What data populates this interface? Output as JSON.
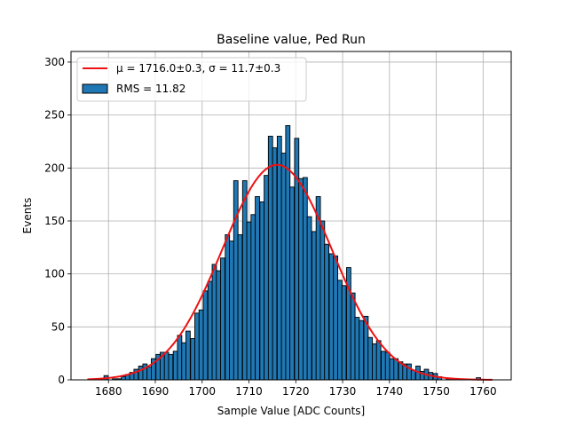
{
  "chart_data": {
    "type": "bar",
    "title": "Baseline value, Ped Run",
    "xlabel": "Sample Value [ADC Counts]",
    "ylabel": "Events",
    "xlim": [
      1672,
      1766
    ],
    "ylim": [
      0,
      310
    ],
    "xticks": [
      1680,
      1690,
      1700,
      1710,
      1720,
      1730,
      1740,
      1750,
      1760
    ],
    "yticks": [
      0,
      50,
      100,
      150,
      200,
      250,
      300
    ],
    "grid": true,
    "legend_position": "top-left",
    "bar_color": "#1f77b4",
    "fit_color": "#ee1111",
    "legend": [
      {
        "kind": "line",
        "label": "μ = 1716.0±0.3, σ = 11.7±0.3"
      },
      {
        "kind": "bar",
        "label": "RMS = 11.82"
      }
    ],
    "histogram": {
      "bin_width": 0.92,
      "bins": [
        [
          1679.5,
          4
        ],
        [
          1681.3,
          1
        ],
        [
          1682.2,
          1
        ],
        [
          1683.2,
          3
        ],
        [
          1684.1,
          5
        ],
        [
          1685.0,
          7
        ],
        [
          1685.9,
          10
        ],
        [
          1686.9,
          13
        ],
        [
          1687.8,
          15
        ],
        [
          1688.7,
          12
        ],
        [
          1689.6,
          20
        ],
        [
          1690.6,
          24
        ],
        [
          1691.5,
          26
        ],
        [
          1692.4,
          26
        ],
        [
          1693.3,
          24
        ],
        [
          1694.3,
          27
        ],
        [
          1695.2,
          42
        ],
        [
          1696.1,
          35
        ],
        [
          1697.0,
          46
        ],
        [
          1698.0,
          39
        ],
        [
          1698.9,
          63
        ],
        [
          1699.8,
          66
        ],
        [
          1700.7,
          84
        ],
        [
          1701.7,
          93
        ],
        [
          1702.6,
          109
        ],
        [
          1703.5,
          103
        ],
        [
          1704.4,
          115
        ],
        [
          1705.4,
          137
        ],
        [
          1706.3,
          131
        ],
        [
          1707.2,
          188
        ],
        [
          1708.1,
          137
        ],
        [
          1709.1,
          188
        ],
        [
          1710.0,
          149
        ],
        [
          1710.9,
          156
        ],
        [
          1711.8,
          173
        ],
        [
          1712.8,
          168
        ],
        [
          1713.7,
          193
        ],
        [
          1714.6,
          230
        ],
        [
          1715.5,
          219
        ],
        [
          1716.5,
          230
        ],
        [
          1717.4,
          214
        ],
        [
          1718.3,
          240
        ],
        [
          1719.2,
          182
        ],
        [
          1720.2,
          228
        ],
        [
          1721.1,
          190
        ],
        [
          1722.0,
          191
        ],
        [
          1722.9,
          154
        ],
        [
          1723.9,
          140
        ],
        [
          1724.8,
          173
        ],
        [
          1725.7,
          150
        ],
        [
          1726.6,
          128
        ],
        [
          1727.6,
          119
        ],
        [
          1728.5,
          117
        ],
        [
          1729.4,
          94
        ],
        [
          1730.3,
          89
        ],
        [
          1731.3,
          106
        ],
        [
          1732.2,
          82
        ],
        [
          1733.1,
          59
        ],
        [
          1734.0,
          56
        ],
        [
          1735.0,
          60
        ],
        [
          1735.9,
          40
        ],
        [
          1736.8,
          34
        ],
        [
          1737.7,
          37
        ],
        [
          1738.7,
          27
        ],
        [
          1739.6,
          26
        ],
        [
          1740.5,
          20
        ],
        [
          1741.4,
          20
        ],
        [
          1742.4,
          17
        ],
        [
          1743.3,
          15
        ],
        [
          1744.2,
          15
        ],
        [
          1745.1,
          9
        ],
        [
          1746.1,
          13
        ],
        [
          1747.0,
          8
        ],
        [
          1747.9,
          10
        ],
        [
          1748.8,
          7
        ],
        [
          1749.8,
          6
        ],
        [
          1750.7,
          3
        ],
        [
          1752.6,
          1
        ],
        [
          1759.0,
          2
        ]
      ]
    },
    "fit": {
      "type": "gaussian",
      "mu": 1716.0,
      "sigma": 11.7,
      "amplitude": 203,
      "x_range": [
        1675.5,
        1762.0
      ]
    }
  }
}
